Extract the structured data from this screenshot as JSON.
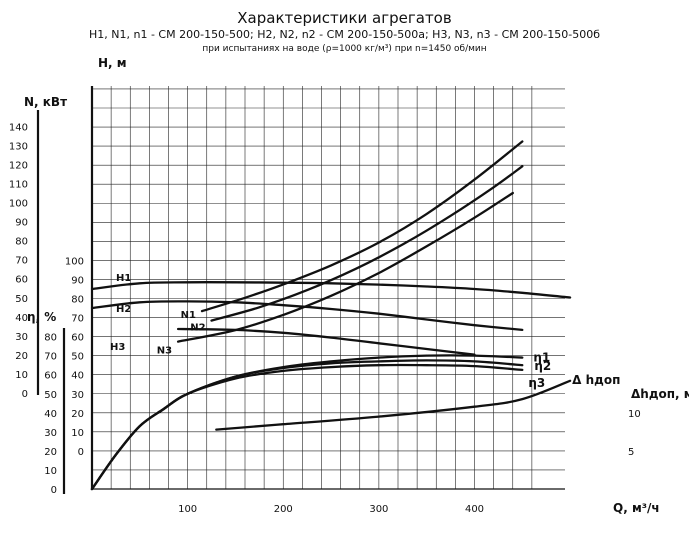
{
  "chart_data": {
    "type": "line",
    "title": "Характеристики агрегатов",
    "subtitle": "H1, N1, n1 - СМ 200-150-500; H2, N2, n2 - СМ 200-150-500а; H3, N3, n3 - СМ 200-150-500б",
    "note": "при испытаниях на воде (ρ=1000 кг/м³) при n=1450 об/мин",
    "xlabel": "Q, м³/ч",
    "x_ticks": [
      "100",
      "200",
      "300",
      "400"
    ],
    "xlim": [
      0,
      500
    ],
    "grid": true,
    "axes": [
      {
        "id": "H",
        "label": "H, м",
        "ticks": [
          "0",
          "10",
          "20",
          "30",
          "40",
          "50",
          "60",
          "70",
          "80",
          "90",
          "100"
        ],
        "ylim": [
          0,
          100
        ]
      },
      {
        "id": "N",
        "label": "N, кВт",
        "ticks": [
          "0",
          "10",
          "20",
          "30",
          "40",
          "50",
          "60",
          "70",
          "80",
          "90",
          "100",
          "110",
          "120",
          "130",
          "140"
        ],
        "ylim": [
          0,
          140
        ]
      },
      {
        "id": "eta",
        "label": "η, %",
        "ticks": [
          "0",
          "10",
          "20",
          "30",
          "40",
          "50",
          "60",
          "70",
          "80"
        ],
        "ylim": [
          0,
          80
        ]
      },
      {
        "id": "dh",
        "label": "Δhдоп, м",
        "ticks": [
          "5",
          "10"
        ],
        "ylim": [
          0,
          20
        ]
      }
    ],
    "series": [
      {
        "name": "H1",
        "axis": "H",
        "x": [
          0,
          50,
          100,
          150,
          200,
          250,
          300,
          350,
          400,
          450,
          500
        ],
        "y": [
          85,
          88,
          88.5,
          88.5,
          88.3,
          88,
          87.3,
          86.3,
          85,
          83,
          80.5
        ]
      },
      {
        "name": "H2",
        "axis": "H",
        "x": [
          0,
          50,
          100,
          150,
          200,
          250,
          300,
          350,
          400,
          450
        ],
        "y": [
          75,
          78,
          78.5,
          78,
          76.5,
          74.5,
          72,
          69,
          66,
          63.5
        ]
      },
      {
        "name": "H3",
        "axis": "H",
        "x": [
          90,
          150,
          200,
          250,
          300,
          350,
          400
        ],
        "y": [
          64,
          63.5,
          62,
          59.5,
          56.5,
          53.5,
          50.5
        ]
      },
      {
        "name": "N1",
        "axis": "N",
        "x": [
          115,
          160,
          200,
          250,
          300,
          350,
          400,
          450
        ],
        "y": [
          43,
          50,
          57,
          67,
          79,
          94,
          112,
          132
        ]
      },
      {
        "name": "N2",
        "axis": "N",
        "x": [
          125,
          175,
          225,
          275,
          325,
          375,
          420,
          450
        ],
        "y": [
          38,
          45,
          54,
          65,
          78,
          93,
          108,
          119
        ]
      },
      {
        "name": "N3",
        "axis": "N",
        "x": [
          90,
          150,
          200,
          250,
          300,
          350,
          400,
          440
        ],
        "y": [
          27,
          33,
          41,
          51,
          63,
          77,
          92,
          105
        ]
      },
      {
        "name": "η1",
        "axis": "eta",
        "x": [
          0,
          25,
          50,
          75,
          100,
          150,
          200,
          250,
          300,
          350,
          400,
          450
        ],
        "y": [
          0,
          18,
          33,
          42,
          50,
          59,
          64,
          67,
          69,
          70,
          70,
          69
        ]
      },
      {
        "name": "η2",
        "axis": "eta",
        "x": [
          0,
          25,
          50,
          75,
          100,
          150,
          200,
          250,
          300,
          350,
          400,
          450
        ],
        "y": [
          0,
          18,
          33,
          42,
          50,
          59,
          63.5,
          66,
          67,
          67.5,
          67,
          65
        ]
      },
      {
        "name": "η3",
        "axis": "eta",
        "x": [
          0,
          25,
          50,
          75,
          100,
          150,
          200,
          250,
          300,
          350,
          400,
          450
        ],
        "y": [
          0,
          18,
          33,
          42,
          50,
          58,
          62,
          64,
          65,
          65,
          64.5,
          62.5
        ]
      },
      {
        "name": "Δ hдоп",
        "axis": "dh",
        "x": [
          130,
          200,
          300,
          400,
          450,
          500
        ],
        "y": [
          7.8,
          8.5,
          9.5,
          10.8,
          11.8,
          14.2
        ]
      }
    ]
  }
}
